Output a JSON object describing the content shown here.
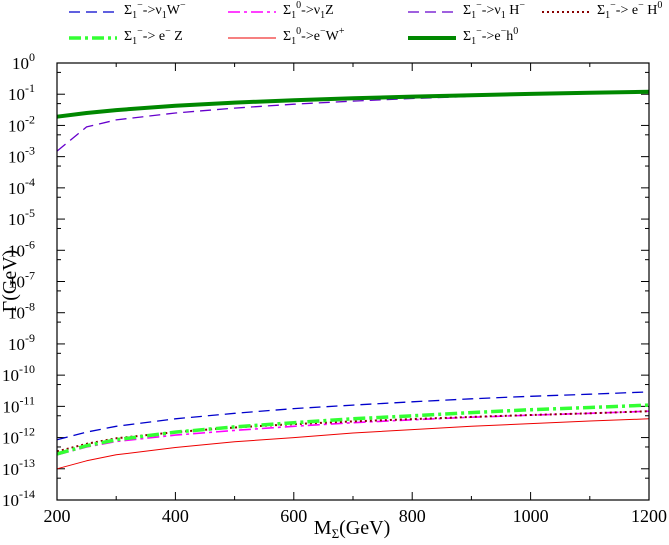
{
  "chart_data": {
    "type": "line",
    "xlabel": "M_Σ(GeV)",
    "ylabel": "Γ(GeV)",
    "xlim": [
      200,
      1200
    ],
    "ylim_log10": [
      -14,
      0
    ],
    "yscale": "log",
    "x_ticks": [
      200,
      400,
      600,
      800,
      1000,
      1200
    ],
    "y_tick_exponents": [
      0,
      -1,
      -2,
      -3,
      -4,
      -5,
      -6,
      -7,
      -8,
      -9,
      -10,
      -11,
      -12,
      -13,
      -14
    ],
    "legend_position": "top",
    "x": [
      200,
      250,
      300,
      400,
      500,
      600,
      700,
      800,
      900,
      1000,
      1100,
      1200
    ],
    "series": [
      {
        "name": "Σ1−->ν1W−",
        "color": "#0000cc",
        "style": "dashed",
        "values": [
          8.5e-13,
          1.5e-12,
          2.3e-12,
          4e-12,
          6e-12,
          8.5e-12,
          1.1e-11,
          1.4e-11,
          1.75e-11,
          2.1e-11,
          2.45e-11,
          2.9e-11
        ]
      },
      {
        "name": "Σ10->ν1Z",
        "color": "#ff00ff",
        "style": "dash-dot",
        "values": [
          2.8e-13,
          5e-13,
          7.5e-13,
          1.2e-12,
          1.7e-12,
          2.3e-12,
          3e-12,
          3.7e-12,
          4.5e-12,
          5.2e-12,
          6e-12,
          7e-12
        ]
      },
      {
        "name": "Σ1−->ν1 H−",
        "color": "#6600cc",
        "style": "dashed",
        "values": [
          0.0015,
          0.009,
          0.015,
          0.025,
          0.036,
          0.048,
          0.06,
          0.073,
          0.085,
          0.098,
          0.11,
          0.125
        ]
      },
      {
        "name": "Σ1−-> e− H0",
        "color": "#880000",
        "style": "dotted",
        "values": [
          3.6e-13,
          6.3e-13,
          9.5e-13,
          1.5e-12,
          2.1e-12,
          2.7e-12,
          3.3e-12,
          3.9e-12,
          4.6e-12,
          5.3e-12,
          6e-12,
          7e-12
        ]
      },
      {
        "name": "Σ1−-> e− Z",
        "color": "#33ff33",
        "style": "dash-dot",
        "values": [
          3e-13,
          5.5e-13,
          8.5e-13,
          1.5e-12,
          2.2e-12,
          3e-12,
          4e-12,
          5e-12,
          6.3e-12,
          7.8e-12,
          9.2e-12,
          1.1e-11
        ]
      },
      {
        "name": "Σ10->e−W+",
        "color": "#ee0000",
        "style": "solid",
        "values": [
          1e-13,
          1.8e-13,
          2.8e-13,
          4.8e-13,
          7.3e-13,
          1e-12,
          1.4e-12,
          1.8e-12,
          2.3e-12,
          2.8e-12,
          3.4e-12,
          4e-12
        ]
      },
      {
        "name": "Σ1−->e−h0",
        "color": "#008800",
        "style": "thick",
        "values": [
          0.019,
          0.025,
          0.031,
          0.043,
          0.054,
          0.064,
          0.074,
          0.084,
          0.093,
          0.102,
          0.111,
          0.12
        ]
      }
    ]
  }
}
